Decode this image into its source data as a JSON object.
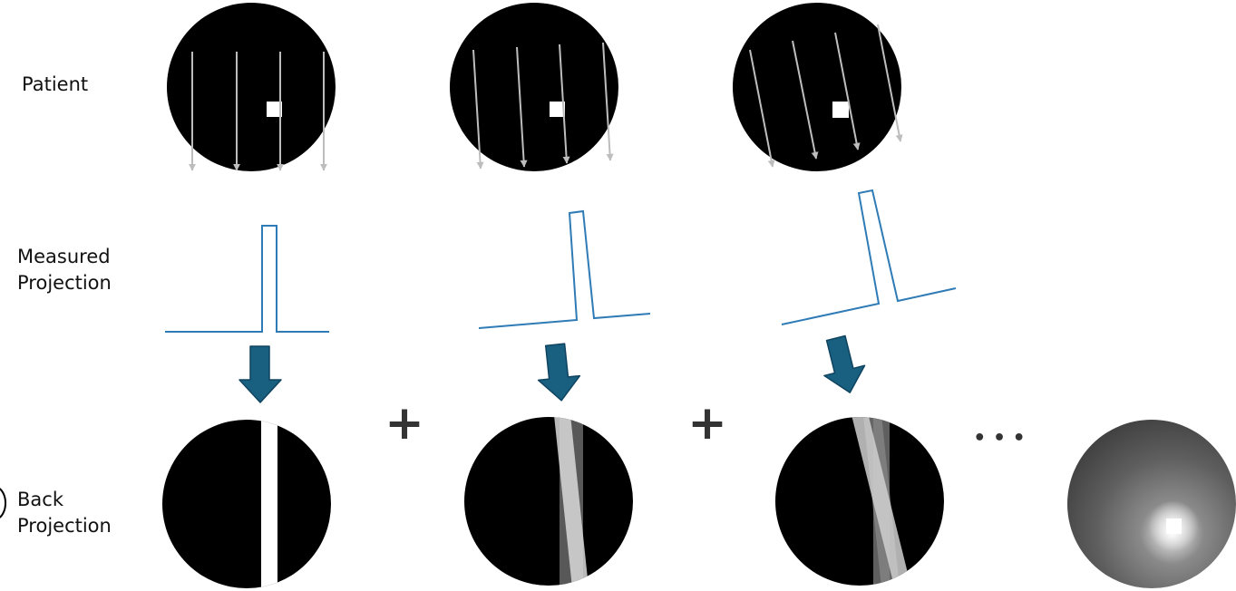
{
  "labels": {
    "patient": "Patient",
    "measured": "Measured\nProjection",
    "back": "Back\nProjection"
  },
  "operators": {
    "plus": "+",
    "ellipsis": "• • •"
  },
  "projection_angles_deg": [
    0,
    6,
    14
  ],
  "colors": {
    "disc": "#000000",
    "ray": "#bdbdbd",
    "projection_line": "#2f7bb6",
    "arrow_fill": "#195f80",
    "arrow_stroke": "#0f4460",
    "operator_text": "#333333",
    "object": "#ffffff"
  },
  "icons": {
    "down_arrow": "down-arrow-icon",
    "plus": "plus-icon",
    "ellipsis": "ellipsis-icon"
  }
}
